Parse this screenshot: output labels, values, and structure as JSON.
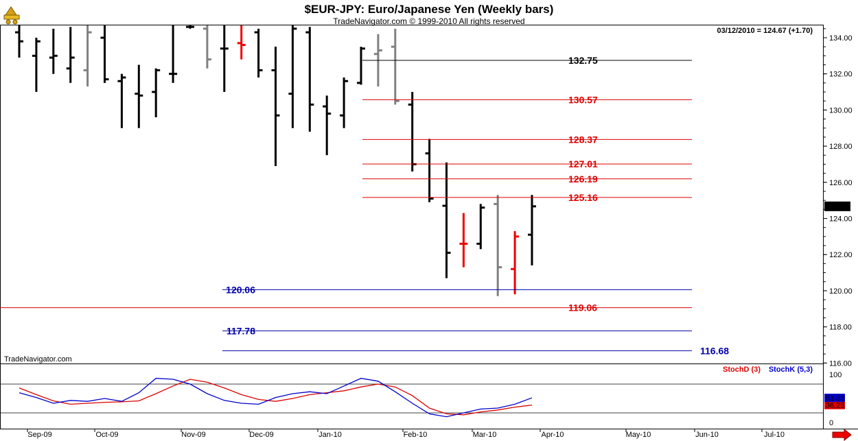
{
  "header": {
    "title": "$EUR-JPY:  Euro/Japanese Yen  (Weekly bars)",
    "copyright": "TradeNavigator.com © 1999-2010 All rights reserved",
    "quote": "03/12/2010 = 124.67 (+1.70)",
    "watermark": "TradeNavigator.com"
  },
  "chart_data": [
    {
      "type": "ohlc",
      "interval": "weekly",
      "symbol": "$EUR-JPY",
      "ylim": [
        115.5,
        135
      ],
      "yticks": [
        "134.00",
        "132.00",
        "130.00",
        "128.00",
        "126.00",
        "124.00",
        "122.00",
        "120.00",
        "118.00",
        "116.00"
      ],
      "xticks": [
        "Sep-09",
        "Oct-09",
        "Nov-09",
        "Dec-09",
        "Jan-10",
        "Feb-10",
        "Mar-10",
        "Apr-10",
        "May-10",
        "Jun-10",
        "Jul-10"
      ],
      "last_price_label": "124.67",
      "bars": [
        {
          "o": 134.3,
          "h": 135.0,
          "l": 132.9,
          "c": 133.8,
          "color": "black"
        },
        {
          "o": 133.0,
          "h": 134.0,
          "l": 131.0,
          "c": 133.8,
          "color": "black"
        },
        {
          "o": 132.9,
          "h": 134.5,
          "l": 132.0,
          "c": 133.0,
          "color": "black"
        },
        {
          "o": 132.3,
          "h": 134.6,
          "l": 131.5,
          "c": 132.9,
          "color": "black"
        },
        {
          "o": 132.2,
          "h": 134.8,
          "l": 131.3,
          "c": 134.3,
          "color": "gray"
        },
        {
          "o": 134.0,
          "h": 134.8,
          "l": 131.5,
          "c": 131.7,
          "color": "black"
        },
        {
          "o": 131.6,
          "h": 132.0,
          "l": 129.0,
          "c": 131.8,
          "color": "black"
        },
        {
          "o": 130.9,
          "h": 132.5,
          "l": 129.0,
          "c": 130.8,
          "color": "black"
        },
        {
          "o": 131.0,
          "h": 132.3,
          "l": 129.6,
          "c": 132.2,
          "color": "black"
        },
        {
          "o": 132.0,
          "h": 134.8,
          "l": 131.5,
          "c": 132.0,
          "color": "black"
        },
        {
          "o": 134.6,
          "h": 134.8,
          "l": 134.5,
          "c": 134.6,
          "color": "black"
        },
        {
          "o": 134.5,
          "h": 134.8,
          "l": 132.3,
          "c": 132.8,
          "color": "gray"
        },
        {
          "o": 133.4,
          "h": 134.8,
          "l": 131.0,
          "c": 133.4,
          "color": "black"
        },
        {
          "o": 133.7,
          "h": 134.7,
          "l": 132.8,
          "c": 133.6,
          "color": "red"
        },
        {
          "o": 134.3,
          "h": 134.5,
          "l": 131.8,
          "c": 132.2,
          "color": "black"
        },
        {
          "o": 132.2,
          "h": 133.5,
          "l": 126.9,
          "c": 129.7,
          "color": "black"
        },
        {
          "o": 130.9,
          "h": 134.8,
          "l": 129.0,
          "c": 134.5,
          "color": "black"
        },
        {
          "o": 134.3,
          "h": 134.6,
          "l": 128.8,
          "c": 130.3,
          "color": "black"
        },
        {
          "o": 130.2,
          "h": 130.8,
          "l": 127.5,
          "c": 129.8,
          "color": "black"
        },
        {
          "o": 129.7,
          "h": 131.8,
          "l": 129.0,
          "c": 131.6,
          "color": "black"
        },
        {
          "o": 131.5,
          "h": 133.5,
          "l": 131.4,
          "c": 133.4,
          "color": "black"
        },
        {
          "o": 133.1,
          "h": 134.2,
          "l": 131.3,
          "c": 133.3,
          "color": "gray"
        },
        {
          "o": 133.5,
          "h": 134.5,
          "l": 130.3,
          "c": 130.5,
          "color": "gray"
        },
        {
          "o": 130.3,
          "h": 131.0,
          "l": 126.6,
          "c": 127.0,
          "color": "black"
        },
        {
          "o": 127.6,
          "h": 128.4,
          "l": 124.9,
          "c": 125.1,
          "color": "black"
        },
        {
          "o": 124.7,
          "h": 127.1,
          "l": 120.7,
          "c": 122.1,
          "color": "black"
        },
        {
          "o": 122.6,
          "h": 124.3,
          "l": 121.3,
          "c": 122.6,
          "color": "red"
        },
        {
          "o": 122.6,
          "h": 124.8,
          "l": 122.3,
          "c": 124.6,
          "color": "black"
        },
        {
          "o": 124.8,
          "h": 125.3,
          "l": 119.7,
          "c": 121.3,
          "color": "gray"
        },
        {
          "o": 121.2,
          "h": 123.3,
          "l": 119.8,
          "c": 123.0,
          "color": "red"
        },
        {
          "o": 123.1,
          "h": 125.3,
          "l": 121.4,
          "c": 124.67,
          "color": "black"
        }
      ],
      "levels": [
        {
          "value": 132.75,
          "label": "132.75",
          "color": "#000000",
          "x0": 0.44,
          "x1": 0.84,
          "lx": 0.69,
          "la": "start"
        },
        {
          "value": 130.57,
          "label": "130.57",
          "color": "#dd0000",
          "x0": 0.44,
          "x1": 0.84,
          "lx": 0.69,
          "la": "start"
        },
        {
          "value": 128.37,
          "label": "128.37",
          "color": "#dd0000",
          "x0": 0.44,
          "x1": 0.84,
          "lx": 0.69,
          "la": "start"
        },
        {
          "value": 127.01,
          "label": "127.01",
          "color": "#dd0000",
          "x0": 0.44,
          "x1": 0.84,
          "lx": 0.69,
          "la": "start"
        },
        {
          "value": 126.19,
          "label": "126.19",
          "color": "#dd0000",
          "x0": 0.44,
          "x1": 0.84,
          "lx": 0.69,
          "la": "start"
        },
        {
          "value": 125.16,
          "label": "125.16",
          "color": "#dd0000",
          "x0": 0.44,
          "x1": 0.84,
          "lx": 0.69,
          "la": "start"
        },
        {
          "value": 120.06,
          "label": "120.06",
          "color": "#0000aa",
          "x0": 0.27,
          "x1": 0.84,
          "lx": 0.26,
          "la": "end"
        },
        {
          "value": 119.06,
          "label": "119.06",
          "color": "#dd0000",
          "x0": 0.0,
          "x1": 0.84,
          "lx": 0.69,
          "la": "start"
        },
        {
          "value": 117.78,
          "label": "117.78",
          "color": "#0000aa",
          "x0": 0.27,
          "x1": 0.84,
          "lx": 0.26,
          "la": "end"
        },
        {
          "value": 116.68,
          "label": "116.68",
          "color": "#0000aa",
          "x0": 0.27,
          "x1": 0.84,
          "lx": 0.85,
          "la": "start"
        }
      ]
    },
    {
      "type": "line",
      "indicator": "stochastic",
      "ylim": [
        0,
        100
      ],
      "yticks": [
        "100",
        "0"
      ],
      "reference_lines": [
        80,
        20
      ],
      "series": [
        {
          "name": "StochD (3)",
          "color": "#dd0000",
          "last_label": "36.23",
          "values": [
            72,
            58,
            45,
            38,
            40,
            42,
            43,
            45,
            60,
            76,
            90,
            84,
            72,
            58,
            48,
            44,
            50,
            58,
            62,
            66,
            74,
            80,
            74,
            56,
            30,
            18,
            16,
            22,
            26,
            32,
            36.23
          ]
        },
        {
          "name": "StochK (5,3)",
          "color": "#0000cc",
          "last_label": "51.33",
          "values": [
            62,
            52,
            40,
            46,
            44,
            50,
            44,
            62,
            92,
            90,
            80,
            60,
            46,
            40,
            38,
            52,
            60,
            64,
            60,
            76,
            92,
            86,
            64,
            40,
            18,
            12,
            20,
            28,
            30,
            38,
            51.33
          ]
        }
      ]
    }
  ]
}
